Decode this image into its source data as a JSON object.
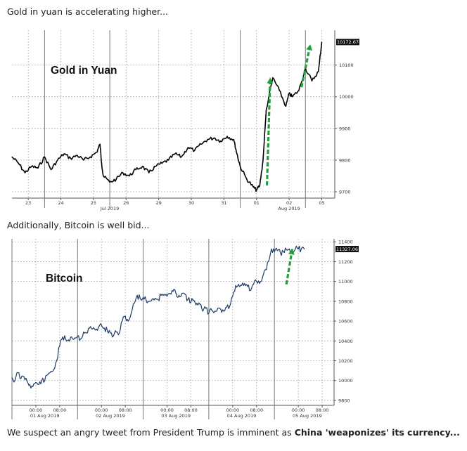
{
  "captions": {
    "top": "Gold in yuan is accelerating higher...",
    "middle": "Additionally, Bitcoin is well bid...",
    "bottom_plain": "We suspect an angry tweet from President Trump is imminent as ",
    "bottom_bold": "China 'weaponizes' its currency..."
  },
  "colors": {
    "gold_line": "#000000",
    "btc_line": "#1f3a66",
    "arrow": "#22a03a",
    "last_box": "#111111"
  },
  "chart_data": [
    {
      "type": "line",
      "title": "Gold in Yuan",
      "ylim": [
        9680,
        10210
      ],
      "yticks": [
        9700,
        9800,
        9900,
        10000,
        10100
      ],
      "last_value_label": "10172.67",
      "x_tick_labels": [
        "23",
        "24",
        "25",
        "26",
        "29",
        "30",
        "31",
        "01",
        "02",
        "05"
      ],
      "x_group_labels": [
        "Jul 2019",
        "Aug 2019"
      ],
      "grid": true,
      "annotation": "two green dashed upward arrows",
      "series": [
        {
          "x": [
            0,
            0.2,
            0.4,
            0.6,
            0.8,
            1.0,
            1.2,
            1.4,
            1.6,
            1.8,
            2.0,
            2.2,
            2.4,
            2.6,
            2.7,
            2.75,
            2.8,
            3.0,
            3.2,
            3.4,
            3.6,
            3.8,
            4.0,
            4.2,
            4.4,
            4.6,
            4.8,
            5.0,
            5.2,
            5.4,
            5.6,
            5.8,
            6.0,
            6.2,
            6.4,
            6.6,
            6.8,
            6.9,
            7.0,
            7.2,
            7.4,
            7.5,
            7.6,
            7.7,
            7.8,
            8.0,
            8.2,
            8.4,
            8.5,
            8.6,
            8.8,
            9.0,
            9.2,
            9.4,
            9.5
          ],
          "values": [
            9810,
            9790,
            9760,
            9780,
            9775,
            9810,
            9770,
            9800,
            9820,
            9805,
            9815,
            9800,
            9810,
            9825,
            9850,
            9790,
            9750,
            9730,
            9740,
            9760,
            9750,
            9770,
            9780,
            9760,
            9780,
            9790,
            9800,
            9820,
            9810,
            9840,
            9830,
            9850,
            9865,
            9870,
            9860,
            9875,
            9865,
            9820,
            9780,
            9740,
            9715,
            9705,
            9720,
            9800,
            9960,
            10060,
            10020,
            9970,
            10010,
            10000,
            10020,
            10090,
            10050,
            10080,
            10172.67
          ]
        }
      ]
    },
    {
      "type": "line",
      "title": "Bitcoin",
      "ylim": [
        9750,
        11430
      ],
      "yticks": [
        9800,
        10000,
        10200,
        10400,
        10600,
        10800,
        11000,
        11200,
        11400
      ],
      "last_value_label": "11327.06",
      "x_tick_labels": [
        "00:00",
        "08:00",
        "00:00",
        "08:00",
        "00:00",
        "08:00",
        "00:00",
        "08:00",
        "00:00",
        "08:00"
      ],
      "x_group_labels": [
        "01 Aug 2019",
        "02 Aug 2019",
        "03 Aug 2019",
        "04 Aug 2019",
        "05 Aug 2019"
      ],
      "grid": true,
      "annotation": "green dashed upward arrow",
      "series": [
        {
          "x": [
            0,
            1,
            2,
            3,
            4,
            5,
            6,
            7,
            8,
            9,
            10,
            11,
            12,
            13,
            14,
            15,
            16,
            17,
            18,
            19,
            20,
            21,
            22,
            23,
            24,
            25,
            26,
            27,
            28,
            29,
            30,
            31,
            32,
            33,
            34,
            35,
            36,
            37,
            38,
            39,
            40,
            41,
            42,
            43,
            44,
            45,
            46,
            47,
            48,
            49,
            50,
            51,
            52,
            53,
            54,
            55,
            56,
            57,
            58,
            59,
            60,
            61,
            62,
            63,
            64,
            65,
            66,
            67,
            68,
            69,
            70,
            71,
            72,
            73,
            74,
            75,
            76,
            77,
            78,
            79,
            80,
            81,
            82,
            83,
            84,
            85,
            86,
            87,
            88,
            89,
            90,
            91,
            92,
            93,
            94,
            95,
            96,
            97,
            98
          ],
          "values": [
            10030,
            10000,
            10080,
            10020,
            10040,
            10000,
            9960,
            9940,
            9980,
            9960,
            10000,
            10000,
            10060,
            10090,
            10110,
            10200,
            10350,
            10440,
            10420,
            10410,
            10440,
            10430,
            10450,
            10420,
            10490,
            10480,
            10530,
            10520,
            10510,
            10540,
            10560,
            10530,
            10500,
            10480,
            10450,
            10490,
            10480,
            10600,
            10650,
            10600,
            10680,
            10780,
            10860,
            10830,
            10840,
            10810,
            10800,
            10820,
            10830,
            10820,
            10860,
            10870,
            10850,
            10880,
            10900,
            10880,
            10860,
            10880,
            10870,
            10820,
            10790,
            10810,
            10780,
            10770,
            10700,
            10730,
            10680,
            10710,
            10700,
            10730,
            10720,
            10700,
            10740,
            10750,
            10850,
            10960,
            10970,
            10960,
            10980,
            10950,
            10910,
            10970,
            11000,
            10980,
            11040,
            11120,
            11200,
            11327.06,
            11300,
            11310,
            11290,
            11300,
            11320,
            11327.06,
            11320,
            11327.06,
            11327.06,
            11327.06,
            11327.06
          ]
        }
      ]
    }
  ]
}
